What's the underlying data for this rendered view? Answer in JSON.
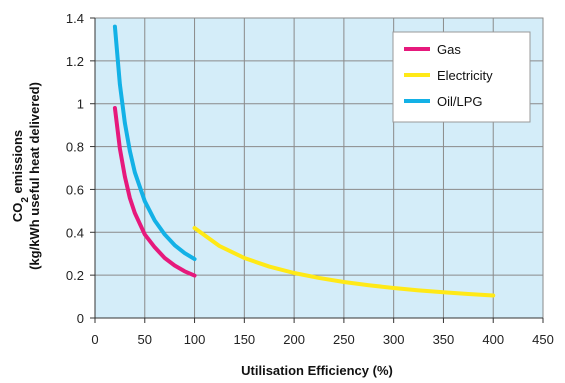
{
  "chart_data": {
    "type": "line",
    "title": "",
    "xlabel": "Utilisation Efficiency (%)",
    "ylabel_line1_prefix": "CO",
    "ylabel_line1_sub": "2",
    "ylabel_line1_suffix": " emissions",
    "ylabel_line2": "(kg/kWh useful heat delivered)",
    "xlim": [
      0,
      450
    ],
    "ylim": [
      0,
      1.4
    ],
    "xticks": [
      0,
      50,
      100,
      150,
      200,
      250,
      300,
      350,
      400,
      450
    ],
    "yticks": [
      0,
      0.2,
      0.4,
      0.6,
      0.8,
      1,
      1.2,
      1.4
    ],
    "ytick_labels": [
      "0",
      "0.2",
      "0.4",
      "0.6",
      "0.8",
      "1",
      "1.2",
      "1.4"
    ],
    "grid": true,
    "plot_background": "#d4edf9",
    "grid_color": "#8a8a8a",
    "legend_position": "top-right",
    "series": [
      {
        "name": "Gas",
        "color": "#e6197c",
        "points": [
          [
            20,
            0.98
          ],
          [
            25,
            0.79
          ],
          [
            30,
            0.66
          ],
          [
            35,
            0.56
          ],
          [
            40,
            0.49
          ],
          [
            50,
            0.39
          ],
          [
            60,
            0.33
          ],
          [
            70,
            0.28
          ],
          [
            80,
            0.245
          ],
          [
            90,
            0.218
          ],
          [
            100,
            0.198
          ]
        ]
      },
      {
        "name": "Electricity",
        "color": "#ffe917",
        "points": [
          [
            100,
            0.42
          ],
          [
            125,
            0.336
          ],
          [
            150,
            0.28
          ],
          [
            175,
            0.24
          ],
          [
            200,
            0.21
          ],
          [
            225,
            0.187
          ],
          [
            250,
            0.168
          ],
          [
            275,
            0.153
          ],
          [
            300,
            0.14
          ],
          [
            325,
            0.129
          ],
          [
            350,
            0.12
          ],
          [
            375,
            0.112
          ],
          [
            400,
            0.105
          ]
        ]
      },
      {
        "name": "Oil/LPG",
        "color": "#13b1e6",
        "points": [
          [
            20,
            1.36
          ],
          [
            25,
            1.09
          ],
          [
            30,
            0.91
          ],
          [
            35,
            0.78
          ],
          [
            40,
            0.68
          ],
          [
            50,
            0.545
          ],
          [
            60,
            0.455
          ],
          [
            70,
            0.39
          ],
          [
            80,
            0.34
          ],
          [
            90,
            0.303
          ],
          [
            100,
            0.275
          ]
        ]
      }
    ]
  }
}
